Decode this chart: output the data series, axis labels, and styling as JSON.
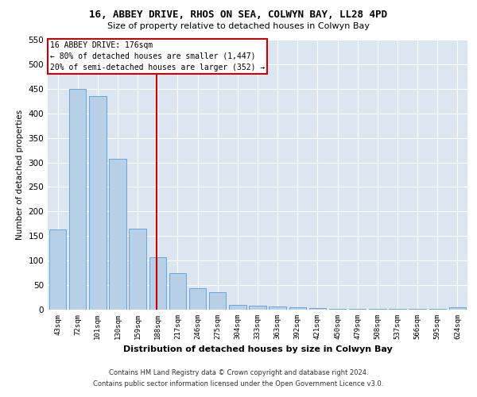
{
  "title1": "16, ABBEY DRIVE, RHOS ON SEA, COLWYN BAY, LL28 4PD",
  "title2": "Size of property relative to detached houses in Colwyn Bay",
  "xlabel": "Distribution of detached houses by size in Colwyn Bay",
  "ylabel": "Number of detached properties",
  "categories": [
    "43sqm",
    "72sqm",
    "101sqm",
    "130sqm",
    "159sqm",
    "188sqm",
    "217sqm",
    "246sqm",
    "275sqm",
    "304sqm",
    "333sqm",
    "363sqm",
    "392sqm",
    "421sqm",
    "450sqm",
    "479sqm",
    "508sqm",
    "537sqm",
    "566sqm",
    "595sqm",
    "624sqm"
  ],
  "values": [
    163,
    450,
    435,
    307,
    165,
    107,
    75,
    43,
    35,
    10,
    8,
    7,
    5,
    3,
    2,
    2,
    1,
    1,
    1,
    1,
    5
  ],
  "bar_color": "#b8cfe8",
  "bar_edge_color": "#5b9bd5",
  "annotation_title": "16 ABBEY DRIVE: 176sqm",
  "annotation_line1": "← 80% of detached houses are smaller (1,447)",
  "annotation_line2": "20% of semi-detached houses are larger (352) →",
  "annotation_box_color": "#ffffff",
  "annotation_box_edge": "#cc0000",
  "ref_line_color": "#cc0000",
  "ref_line_x": 4.93,
  "ylim": [
    0,
    550
  ],
  "yticks": [
    0,
    50,
    100,
    150,
    200,
    250,
    300,
    350,
    400,
    450,
    500,
    550
  ],
  "bg_color": "#dce6f1",
  "footer1": "Contains HM Land Registry data © Crown copyright and database right 2024.",
  "footer2": "Contains public sector information licensed under the Open Government Licence v3.0."
}
